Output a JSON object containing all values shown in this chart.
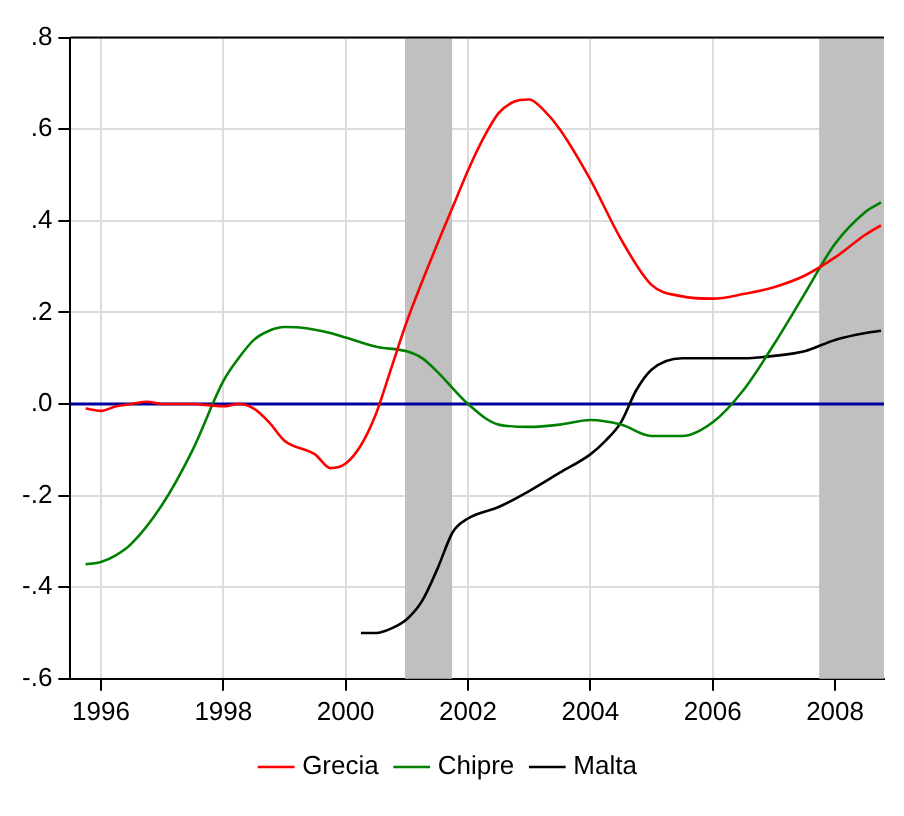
{
  "chart_data": {
    "type": "line",
    "xlim": [
      1995.5,
      2008.8
    ],
    "ylim": [
      -0.6,
      0.8
    ],
    "xticks": [
      1996,
      1998,
      2000,
      2002,
      2004,
      2006,
      2008
    ],
    "yticks": [
      {
        "value": -0.6,
        "label": "-.6"
      },
      {
        "value": -0.4,
        "label": "-.4"
      },
      {
        "value": -0.2,
        "label": "-.2"
      },
      {
        "value": 0,
        "label": ".0"
      },
      {
        "value": 0.2,
        "label": ".2"
      },
      {
        "value": 0.4,
        "label": ".4"
      },
      {
        "value": 0.6,
        "label": ".6"
      },
      {
        "value": 0.8,
        "label": ".8"
      }
    ],
    "grid": true,
    "legend": "bottom",
    "marker": "none",
    "line_style": "solid",
    "ref_lines": [
      {
        "axis": "y",
        "value": 0,
        "color": "#0000a0"
      }
    ],
    "bands": [
      {
        "axis": "x",
        "from": 2000.97,
        "to": 2001.74,
        "color": "#c0c0c0"
      },
      {
        "axis": "x",
        "from": 2007.74,
        "to": 2008.8,
        "color": "#c0c0c0"
      }
    ],
    "series": [
      {
        "name": "Grecia",
        "color": "#ff0000",
        "x": [
          1995.75,
          1996,
          1996.25,
          1996.5,
          1996.75,
          1997,
          1997.5,
          1998,
          1998.25,
          1998.5,
          1998.75,
          1999,
          1999.5,
          1999.75,
          2000,
          2000.25,
          2000.5,
          2000.75,
          2001,
          2001.5,
          2001.75,
          2002,
          2002.25,
          2002.5,
          2002.75,
          2003,
          2003.25,
          2003.5,
          2004,
          2004.5,
          2005,
          2005.5,
          2006,
          2006.5,
          2007,
          2007.5,
          2008,
          2008.5,
          2008.75
        ],
        "values": [
          -0.01,
          -0.015,
          -0.005,
          0,
          0.005,
          0,
          0,
          -0.005,
          0,
          -0.01,
          -0.04,
          -0.08,
          -0.11,
          -0.14,
          -0.13,
          -0.09,
          -0.02,
          0.08,
          0.18,
          0.35,
          0.43,
          0.51,
          0.58,
          0.635,
          0.66,
          0.665,
          0.64,
          0.6,
          0.49,
          0.36,
          0.26,
          0.235,
          0.23,
          0.24,
          0.255,
          0.28,
          0.32,
          0.37,
          0.39
        ]
      },
      {
        "name": "Chipre",
        "color": "#008000",
        "x": [
          1995.75,
          1996,
          1996.25,
          1996.5,
          1997,
          1997.5,
          1998,
          1998.25,
          1998.5,
          1998.75,
          1999,
          1999.25,
          1999.75,
          2000,
          2000.5,
          2001,
          2001.25,
          2001.5,
          2002,
          2002.5,
          2003,
          2003.5,
          2004,
          2004.5,
          2005,
          2005.5,
          2006,
          2006.5,
          2007,
          2007.5,
          2008,
          2008.5,
          2008.75
        ],
        "values": [
          -0.35,
          -0.345,
          -0.33,
          -0.305,
          -0.22,
          -0.1,
          0.05,
          0.1,
          0.14,
          0.16,
          0.168,
          0.167,
          0.155,
          0.145,
          0.125,
          0.115,
          0.1,
          0.07,
          0,
          -0.045,
          -0.05,
          -0.045,
          -0.035,
          -0.045,
          -0.07,
          -0.07,
          -0.04,
          0.03,
          0.13,
          0.24,
          0.35,
          0.42,
          0.44
        ]
      },
      {
        "name": "Malta",
        "color": "#000000",
        "x": [
          2000.25,
          2000.5,
          2000.75,
          2001,
          2001.25,
          2001.5,
          2001.75,
          2002,
          2002.5,
          2003,
          2003.5,
          2004,
          2004.25,
          2004.5,
          2004.75,
          2005,
          2005.5,
          2006,
          2006.5,
          2007,
          2007.5,
          2008,
          2008.5,
          2008.75
        ],
        "values": [
          -0.5,
          -0.5,
          -0.49,
          -0.47,
          -0.43,
          -0.36,
          -0.28,
          -0.25,
          -0.225,
          -0.19,
          -0.15,
          -0.11,
          -0.08,
          -0.04,
          0.03,
          0.075,
          0.1,
          0.1,
          0.1,
          0.105,
          0.115,
          0.14,
          0.155,
          0.16
        ]
      }
    ]
  }
}
